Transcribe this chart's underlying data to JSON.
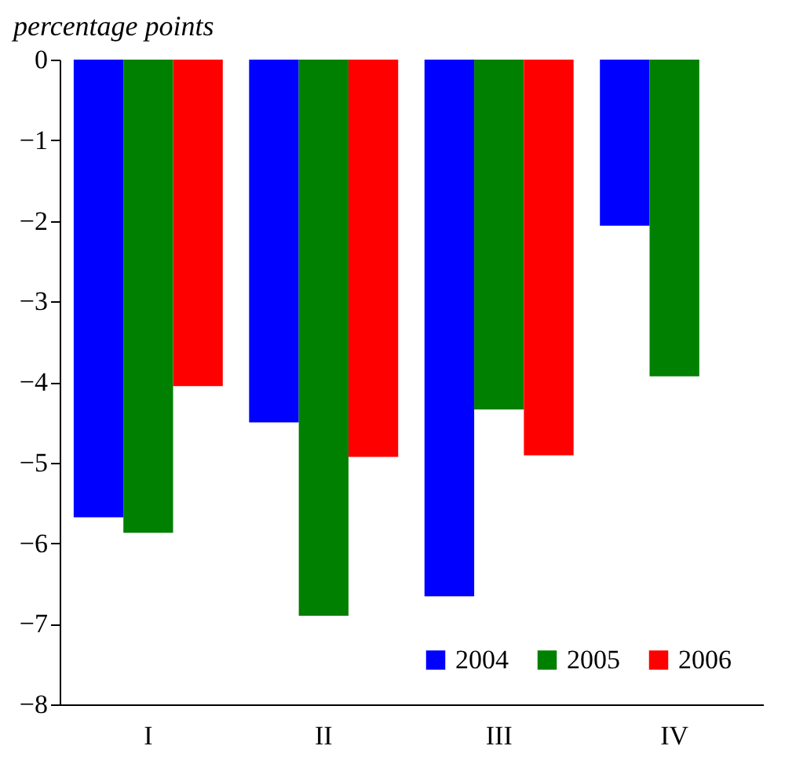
{
  "chart_data": {
    "type": "bar",
    "ylabel": "percentage points",
    "categories": [
      "I",
      "II",
      "III",
      "IV"
    ],
    "series": [
      {
        "name": "2004",
        "color": "#0000ff",
        "values": [
          -5.68,
          -4.5,
          -6.66,
          -2.06
        ]
      },
      {
        "name": "2005",
        "color": "#008000",
        "values": [
          -5.87,
          -6.9,
          -4.34,
          -3.93
        ]
      },
      {
        "name": "2006",
        "color": "#ff0000",
        "values": [
          -4.05,
          -4.93,
          -4.91,
          null
        ]
      }
    ],
    "ylim": [
      -8,
      0
    ],
    "yticks": [
      -8,
      -7,
      -6,
      -5,
      -4,
      -3,
      -2,
      -1,
      0
    ],
    "grid": false,
    "legend": "bottom right"
  }
}
